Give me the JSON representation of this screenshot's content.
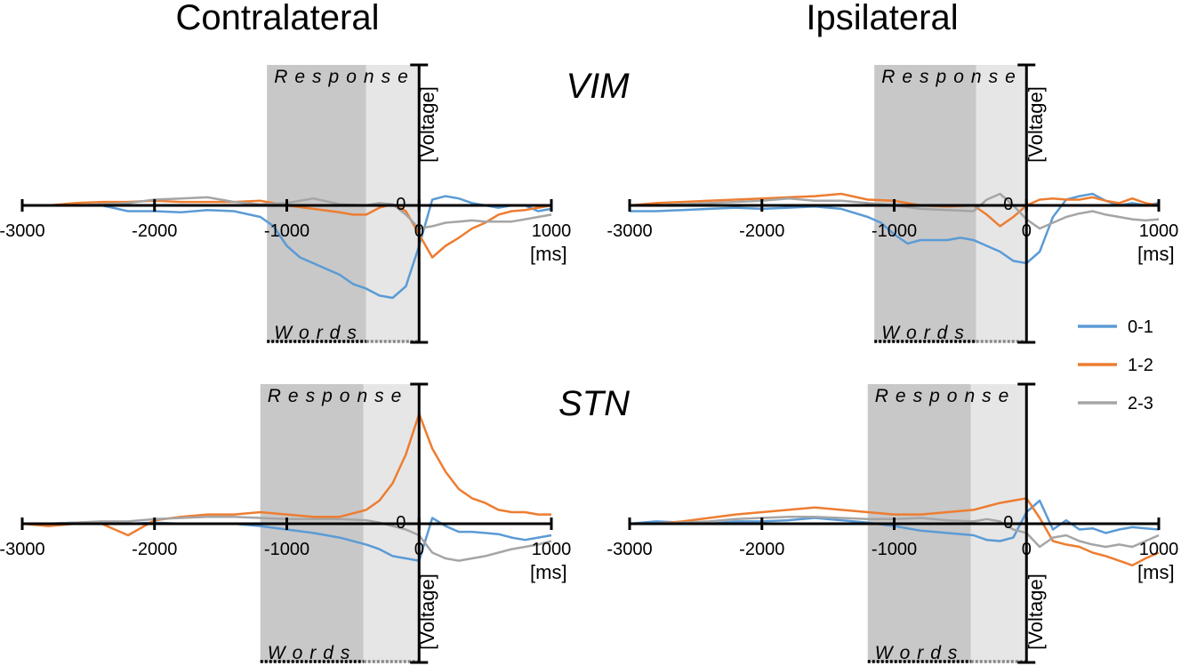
{
  "column_titles": [
    "Contralateral",
    "Ipsilateral"
  ],
  "row_titles": [
    "VIM",
    "STN"
  ],
  "colors": {
    "s01": "#5b9bd5",
    "s12": "#ed7d31",
    "s23": "#a5a5a5",
    "band_dark": "#c8c8c8",
    "band_light": "#e6e6e6"
  },
  "legend": [
    {
      "name": "0-1",
      "color": "#5b9bd5"
    },
    {
      "name": "1-2",
      "color": "#ed7d31"
    },
    {
      "name": "2-3",
      "color": "#a5a5a5"
    }
  ],
  "chart_data": [
    {
      "type": "line",
      "panel": "VIM-contralateral",
      "region_label": "VIM",
      "hemisphere": "Contralateral",
      "x_ticks": [
        "-3000",
        "-2000",
        "-1000",
        "0",
        "1000"
      ],
      "xlabel": "[ms]",
      "ylabel": "[Voltage]",
      "xlim": [
        -3000,
        1000
      ],
      "ylim": [
        -1.2,
        1.2
      ],
      "y_axis_direction": "up",
      "bands": [
        {
          "label": "Response",
          "from": -1150,
          "to": -400,
          "shade": "dark"
        },
        {
          "label": "Words",
          "from": -400,
          "to": 0,
          "shade": "light"
        }
      ],
      "zero_label": "0",
      "series": [
        {
          "name": "0-1",
          "x": [
            -3000,
            -2800,
            -2600,
            -2400,
            -2200,
            -2000,
            -1800,
            -1600,
            -1400,
            -1200,
            -1100,
            -1000,
            -900,
            -800,
            -700,
            -600,
            -500,
            -400,
            -300,
            -200,
            -100,
            0,
            100,
            200,
            300,
            400,
            500,
            600,
            700,
            800,
            900,
            1000
          ],
          "y": [
            0.0,
            0.0,
            0.0,
            0.0,
            -0.05,
            -0.05,
            -0.06,
            -0.04,
            -0.05,
            -0.1,
            -0.18,
            -0.35,
            -0.45,
            -0.5,
            -0.55,
            -0.6,
            -0.68,
            -0.72,
            -0.78,
            -0.8,
            -0.7,
            -0.35,
            0.05,
            0.08,
            0.06,
            0.02,
            0.0,
            -0.02,
            0.0,
            0.0,
            -0.05,
            -0.03
          ]
        },
        {
          "name": "1-2",
          "x": [
            -3000,
            -2800,
            -2600,
            -2400,
            -2200,
            -2000,
            -1800,
            -1600,
            -1400,
            -1200,
            -1000,
            -800,
            -600,
            -500,
            -400,
            -300,
            -200,
            -100,
            0,
            100,
            200,
            300,
            400,
            500,
            600,
            700,
            800,
            900,
            1000
          ],
          "y": [
            0.0,
            0.0,
            0.02,
            0.03,
            0.03,
            0.04,
            0.03,
            0.03,
            0.03,
            0.04,
            0.0,
            -0.03,
            -0.06,
            -0.08,
            -0.08,
            -0.02,
            0.01,
            -0.05,
            -0.25,
            -0.45,
            -0.35,
            -0.28,
            -0.2,
            -0.15,
            -0.08,
            -0.05,
            -0.04,
            -0.02,
            0.0
          ]
        },
        {
          "name": "2-3",
          "x": [
            -3000,
            -2800,
            -2600,
            -2400,
            -2200,
            -2000,
            -1800,
            -1600,
            -1400,
            -1200,
            -1000,
            -800,
            -600,
            -400,
            -300,
            -200,
            -100,
            0,
            100,
            200,
            300,
            400,
            500,
            600,
            700,
            800,
            900,
            1000
          ],
          "y": [
            0.0,
            0.0,
            0.0,
            0.01,
            0.02,
            0.05,
            0.06,
            0.07,
            0.03,
            0.01,
            0.02,
            0.06,
            0.01,
            0.0,
            0.02,
            0.01,
            -0.08,
            -0.2,
            -0.18,
            -0.15,
            -0.14,
            -0.13,
            -0.14,
            -0.14,
            -0.14,
            -0.12,
            -0.1,
            -0.08
          ]
        }
      ]
    },
    {
      "type": "line",
      "panel": "VIM-ipsilateral",
      "region_label": "VIM",
      "hemisphere": "Ipsilateral",
      "x_ticks": [
        "-3000",
        "-2000",
        "-1000",
        "0",
        "1000"
      ],
      "xlabel": "[ms]",
      "ylabel": "[Voltage]",
      "xlim": [
        -3000,
        1000
      ],
      "ylim": [
        -1.2,
        1.2
      ],
      "y_axis_direction": "up",
      "bands": [
        {
          "label": "Response",
          "from": -1150,
          "to": -380,
          "shade": "dark"
        },
        {
          "label": "Words",
          "from": -380,
          "to": 0,
          "shade": "light"
        }
      ],
      "zero_label": "0",
      "series": [
        {
          "name": "0-1",
          "x": [
            -3000,
            -2800,
            -2600,
            -2400,
            -2200,
            -2000,
            -1800,
            -1600,
            -1400,
            -1200,
            -1100,
            -1000,
            -900,
            -800,
            -600,
            -500,
            -400,
            -300,
            -200,
            -100,
            0,
            100,
            200,
            300,
            400,
            500,
            600,
            700,
            800,
            900,
            1000
          ],
          "y": [
            -0.05,
            -0.05,
            -0.04,
            -0.03,
            -0.02,
            -0.03,
            -0.02,
            -0.01,
            -0.03,
            -0.1,
            -0.15,
            -0.25,
            -0.33,
            -0.3,
            -0.3,
            -0.28,
            -0.3,
            -0.35,
            -0.4,
            -0.48,
            -0.5,
            -0.4,
            -0.1,
            0.05,
            0.08,
            0.1,
            0.04,
            0.0,
            0.02,
            0.0,
            0.02
          ]
        },
        {
          "name": "1-2",
          "x": [
            -3000,
            -2800,
            -2600,
            -2400,
            -2200,
            -2000,
            -1800,
            -1600,
            -1400,
            -1200,
            -1000,
            -800,
            -600,
            -400,
            -300,
            -200,
            -100,
            0,
            100,
            200,
            300,
            400,
            500,
            600,
            700,
            800,
            900,
            1000
          ],
          "y": [
            0.0,
            0.02,
            0.03,
            0.04,
            0.05,
            0.06,
            0.07,
            0.08,
            0.1,
            0.05,
            0.04,
            0.0,
            -0.01,
            0.0,
            -0.08,
            -0.18,
            -0.1,
            0.0,
            0.05,
            0.06,
            0.05,
            0.05,
            0.07,
            0.04,
            0.02,
            0.06,
            0.02,
            0.0
          ]
        },
        {
          "name": "2-3",
          "x": [
            -3000,
            -2800,
            -2600,
            -2400,
            -2200,
            -2000,
            -1800,
            -1600,
            -1400,
            -1200,
            -1000,
            -800,
            -600,
            -400,
            -300,
            -200,
            -100,
            0,
            100,
            200,
            300,
            400,
            500,
            600,
            700,
            800,
            900,
            1000
          ],
          "y": [
            0.0,
            0.0,
            0.01,
            0.02,
            0.03,
            0.04,
            0.06,
            0.04,
            0.04,
            0.02,
            0.0,
            -0.03,
            -0.04,
            -0.05,
            0.05,
            0.1,
            0.0,
            -0.12,
            -0.2,
            -0.15,
            -0.1,
            -0.07,
            -0.05,
            -0.08,
            -0.1,
            -0.12,
            -0.13,
            -0.12
          ]
        }
      ]
    },
    {
      "type": "line",
      "panel": "STN-contralateral",
      "region_label": "STN",
      "hemisphere": "Contralateral",
      "x_ticks": [
        "-3000",
        "-2000",
        "-1000",
        "0",
        "1000"
      ],
      "xlabel": "[ms]",
      "ylabel": "[Voltage]",
      "xlim": [
        -3000,
        1000
      ],
      "ylim": [
        -1.2,
        1.2
      ],
      "y_axis_direction": "up",
      "bands": [
        {
          "label": "Response",
          "from": -1200,
          "to": -420,
          "shade": "dark"
        },
        {
          "label": "Words",
          "from": -420,
          "to": 0,
          "shade": "light"
        }
      ],
      "zero_label": "0",
      "series": [
        {
          "name": "0-1",
          "x": [
            -3000,
            -2800,
            -2600,
            -2400,
            -2200,
            -2000,
            -1800,
            -1600,
            -1400,
            -1200,
            -1000,
            -800,
            -600,
            -400,
            -300,
            -200,
            -100,
            0,
            100,
            200,
            300,
            400,
            500,
            600,
            700,
            800,
            900,
            1000
          ],
          "y": [
            0.0,
            0.0,
            0.01,
            0.0,
            0.0,
            0.01,
            0.0,
            0.0,
            0.0,
            -0.02,
            -0.05,
            -0.08,
            -0.12,
            -0.18,
            -0.22,
            -0.28,
            -0.3,
            -0.32,
            0.05,
            -0.02,
            -0.07,
            -0.07,
            -0.08,
            -0.09,
            -0.12,
            -0.14,
            -0.12,
            -0.1
          ]
        },
        {
          "name": "1-2",
          "x": [
            -3000,
            -2800,
            -2600,
            -2400,
            -2200,
            -2000,
            -1800,
            -1600,
            -1400,
            -1200,
            -1000,
            -800,
            -600,
            -400,
            -300,
            -200,
            -100,
            0,
            100,
            200,
            300,
            400,
            500,
            600,
            700,
            800,
            900,
            1000
          ],
          "y": [
            0.0,
            -0.02,
            0.0,
            0.0,
            -0.1,
            0.03,
            0.06,
            0.08,
            0.08,
            0.1,
            0.08,
            0.06,
            0.06,
            0.12,
            0.2,
            0.35,
            0.6,
            0.95,
            0.65,
            0.45,
            0.3,
            0.22,
            0.18,
            0.12,
            0.1,
            0.1,
            0.08,
            0.08
          ]
        },
        {
          "name": "2-3",
          "x": [
            -3000,
            -2800,
            -2600,
            -2400,
            -2200,
            -2000,
            -1800,
            -1600,
            -1400,
            -1200,
            -1000,
            -800,
            -600,
            -400,
            -300,
            -200,
            -100,
            0,
            100,
            200,
            300,
            400,
            500,
            600,
            700,
            800,
            900,
            1000
          ],
          "y": [
            0.0,
            0.0,
            0.01,
            0.02,
            0.02,
            0.04,
            0.05,
            0.06,
            0.06,
            0.05,
            0.04,
            0.04,
            0.04,
            0.03,
            0.01,
            -0.02,
            -0.05,
            -0.1,
            -0.25,
            -0.3,
            -0.32,
            -0.3,
            -0.28,
            -0.25,
            -0.22,
            -0.2,
            -0.18,
            -0.15
          ]
        }
      ]
    },
    {
      "type": "line",
      "panel": "STN-ipsilateral",
      "region_label": "STN",
      "hemisphere": "Ipsilateral",
      "x_ticks": [
        "-3000",
        "-2000",
        "-1000",
        "0",
        "1000"
      ],
      "xlabel": "[ms]",
      "ylabel": "[Voltage]",
      "xlim": [
        -3000,
        1000
      ],
      "ylim": [
        -1.2,
        1.2
      ],
      "y_axis_direction": "up",
      "bands": [
        {
          "label": "Response",
          "from": -1200,
          "to": -420,
          "shade": "dark"
        },
        {
          "label": "Words",
          "from": -420,
          "to": 0,
          "shade": "light"
        }
      ],
      "zero_label": "0",
      "series": [
        {
          "name": "0-1",
          "x": [
            -3000,
            -2800,
            -2600,
            -2400,
            -2200,
            -2000,
            -1800,
            -1600,
            -1400,
            -1200,
            -1000,
            -800,
            -600,
            -400,
            -300,
            -200,
            -100,
            0,
            100,
            200,
            300,
            400,
            500,
            600,
            700,
            800,
            900,
            1000
          ],
          "y": [
            0.0,
            0.02,
            0.01,
            0.0,
            0.02,
            0.02,
            0.03,
            0.05,
            0.03,
            0.01,
            -0.02,
            -0.06,
            -0.08,
            -0.1,
            -0.14,
            -0.15,
            -0.12,
            0.1,
            0.2,
            -0.05,
            0.03,
            -0.05,
            -0.04,
            -0.08,
            -0.05,
            -0.03,
            -0.04,
            -0.05
          ]
        },
        {
          "name": "1-2",
          "x": [
            -3000,
            -2800,
            -2600,
            -2400,
            -2200,
            -2000,
            -1800,
            -1600,
            -1400,
            -1200,
            -1000,
            -800,
            -600,
            -400,
            -300,
            -200,
            -100,
            0,
            100,
            200,
            300,
            400,
            500,
            600,
            700,
            800,
            900,
            1000
          ],
          "y": [
            0.0,
            0.0,
            0.02,
            0.05,
            0.08,
            0.1,
            0.12,
            0.14,
            0.12,
            0.1,
            0.08,
            0.08,
            0.1,
            0.12,
            0.15,
            0.18,
            0.2,
            0.22,
            0.05,
            -0.15,
            -0.18,
            -0.2,
            -0.25,
            -0.28,
            -0.32,
            -0.36,
            -0.3,
            -0.25
          ]
        },
        {
          "name": "2-3",
          "x": [
            -3000,
            -2800,
            -2600,
            -2400,
            -2200,
            -2000,
            -1800,
            -1600,
            -1400,
            -1200,
            -1000,
            -800,
            -600,
            -400,
            -300,
            -200,
            -100,
            0,
            100,
            200,
            300,
            400,
            500,
            600,
            700,
            800,
            900,
            1000
          ],
          "y": [
            0.0,
            0.0,
            0.01,
            0.02,
            0.04,
            0.05,
            0.06,
            0.06,
            0.05,
            0.04,
            0.04,
            0.05,
            0.03,
            0.02,
            0.04,
            0.02,
            -0.05,
            -0.08,
            -0.2,
            -0.12,
            -0.1,
            -0.15,
            -0.18,
            -0.2,
            -0.18,
            -0.2,
            -0.15,
            -0.1
          ]
        }
      ]
    }
  ]
}
